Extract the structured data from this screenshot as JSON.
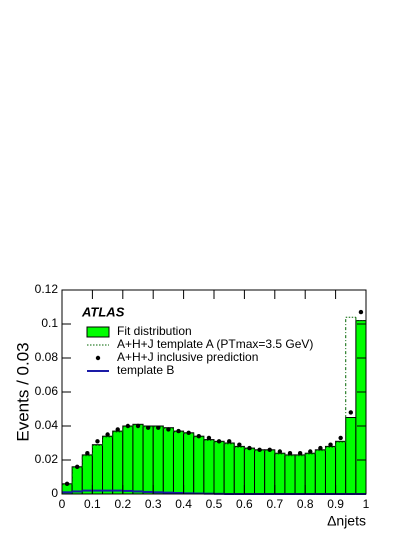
{
  "chart_data": {
    "type": "histogram",
    "xlabel": "Δnjets",
    "ylabel": "Events / 0.03",
    "annotation": "ATLAS",
    "bins": [
      0,
      0.0333,
      0.0667,
      0.1,
      0.1333,
      0.1667,
      0.2,
      0.2333,
      0.2667,
      0.3,
      0.3333,
      0.3667,
      0.4,
      0.4333,
      0.4667,
      0.5,
      0.5333,
      0.5667,
      0.6,
      0.6333,
      0.6667,
      0.7,
      0.7333,
      0.7667,
      0.8,
      0.8333,
      0.8667,
      0.9,
      0.9333,
      0.9667,
      1
    ],
    "series": [
      {
        "name": "Fit distribution",
        "color": "#00ff00",
        "style": "filled",
        "values": [
          0.006,
          0.016,
          0.023,
          0.029,
          0.034,
          0.037,
          0.04,
          0.041,
          0.04,
          0.04,
          0.039,
          0.037,
          0.036,
          0.034,
          0.032,
          0.031,
          0.03,
          0.028,
          0.027,
          0.026,
          0.026,
          0.024,
          0.023,
          0.023,
          0.024,
          0.026,
          0.028,
          0.031,
          0.045,
          0.102
        ]
      },
      {
        "name": "A+H+J template A (PTmax=3.5 GeV)",
        "color": "#006400",
        "style": "dotted",
        "values": [
          0.0055,
          0.0155,
          0.0225,
          0.0285,
          0.0335,
          0.0365,
          0.0395,
          0.0405,
          0.0395,
          0.0395,
          0.0385,
          0.0365,
          0.0355,
          0.0335,
          0.0315,
          0.0305,
          0.0295,
          0.0275,
          0.0265,
          0.0255,
          0.0255,
          0.0235,
          0.0225,
          0.0225,
          0.0235,
          0.0255,
          0.0275,
          0.0305,
          0.104,
          0.102
        ]
      },
      {
        "name": "A+H+J inclusive prediction",
        "color": "#000000",
        "style": "points",
        "values": [
          0.006,
          0.016,
          0.024,
          0.031,
          0.035,
          0.038,
          0.04,
          0.04,
          0.039,
          0.039,
          0.038,
          0.037,
          0.036,
          0.034,
          0.033,
          0.031,
          0.031,
          0.029,
          0.027,
          0.026,
          0.026,
          0.025,
          0.024,
          0.024,
          0.025,
          0.027,
          0.029,
          0.033,
          0.048,
          0.107
        ]
      },
      {
        "name": "template B",
        "color": "#1a1aa6",
        "style": "line",
        "values": [
          0.001,
          0.0015,
          0.002,
          0.002,
          0.002,
          0.002,
          0.0018,
          0.0015,
          0.0012,
          0.001,
          0.0008,
          0.0006,
          0.0004,
          0.0003,
          0.0002,
          0.0001,
          0,
          0,
          0,
          0,
          0,
          0,
          0,
          0,
          0,
          0,
          0,
          0,
          0,
          0
        ]
      }
    ],
    "xlim": [
      0,
      1
    ],
    "xticks": [
      0,
      0.1,
      0.2,
      0.3,
      0.4,
      0.5,
      0.6,
      0.7,
      0.8,
      0.9,
      1
    ],
    "ylim": [
      0,
      0.12
    ],
    "yticks": [
      0,
      0.02,
      0.04,
      0.06,
      0.08,
      0.1,
      0.12
    ]
  }
}
